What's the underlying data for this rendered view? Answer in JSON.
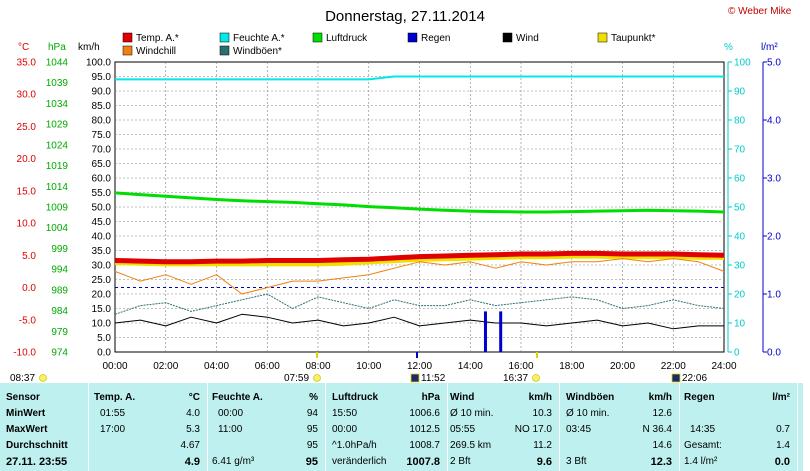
{
  "header": {
    "title": "Donnerstag, 27.11.2014",
    "copyright": "© Weber Mike"
  },
  "legend": [
    {
      "name": "Temp. A.*",
      "color": "#e00000"
    },
    {
      "name": "Feuchte A.*",
      "color": "#00e8e8"
    },
    {
      "name": "Luftdruck",
      "color": "#00dd00"
    },
    {
      "name": "Regen",
      "color": "#0000cc"
    },
    {
      "name": "Wind",
      "color": "#000000"
    },
    {
      "name": "Taupunkt*",
      "color": "#f0e000"
    },
    {
      "name": "Windchill",
      "color": "#f08010"
    },
    {
      "name": "Windböen*",
      "color": "#2a7070"
    }
  ],
  "axes": {
    "temp_unit": "°C",
    "hpa_unit": "hPa",
    "kmh_unit": "km/h",
    "pct_unit": "%",
    "rain_unit": "l/m²",
    "temp_ticks": [
      "35.0",
      "30.0",
      "25.0",
      "20.0",
      "15.0",
      "10.0",
      "5.0",
      "0.0",
      "-5.0",
      "-10.0"
    ],
    "hpa_ticks": [
      "1044",
      "1039",
      "1034",
      "1029",
      "1024",
      "1019",
      "1014",
      "1009",
      "1004",
      "999",
      "994",
      "989",
      "984",
      "979",
      "974"
    ],
    "kmh_ticks": [
      "100.0",
      "95.0",
      "90.0",
      "85.0",
      "80.0",
      "75.0",
      "70.0",
      "65.0",
      "60.0",
      "55.0",
      "50.0",
      "45.0",
      "40.0",
      "35.0",
      "30.0",
      "25.0",
      "20.0",
      "15.0",
      "10.0",
      "5.0",
      "0.0"
    ],
    "pct_ticks": [
      "100",
      "90",
      "80",
      "70",
      "60",
      "50",
      "40",
      "30",
      "20",
      "10",
      "0"
    ],
    "rain_ticks": [
      "5.0",
      "4.0",
      "3.0",
      "2.0",
      "1.0",
      "0.0"
    ],
    "time_ticks": [
      "00:00",
      "02:00",
      "04:00",
      "06:00",
      "08:00",
      "10:00",
      "12:00",
      "14:00",
      "16:00",
      "18:00",
      "20:00",
      "22:00",
      "24:00"
    ]
  },
  "events": {
    "sunrise": "08:37",
    "sunrise_marker": "07:59",
    "noon": "11:52",
    "sunset": "16:37",
    "moon": "22:06"
  },
  "chart_data": {
    "type": "line",
    "title": "Donnerstag, 27.11.2014",
    "x_range": [
      "00:00",
      "24:00"
    ],
    "ylim_temp": [
      -10,
      35
    ],
    "ylim_hpa": [
      974,
      1044
    ],
    "ylim_kmh": [
      0,
      100
    ],
    "ylim_pct": [
      0,
      100
    ],
    "ylim_rain": [
      0,
      5
    ],
    "grid": true,
    "x_hours": [
      0,
      1,
      2,
      3,
      4,
      5,
      6,
      7,
      8,
      9,
      10,
      11,
      12,
      13,
      14,
      15,
      16,
      17,
      18,
      19,
      20,
      21,
      22,
      23,
      24
    ],
    "series": [
      {
        "name": "Temp. A.*",
        "axis": "temp",
        "color": "#e00000",
        "values": [
          4.2,
          4.1,
          4.0,
          4.0,
          4.1,
          4.1,
          4.2,
          4.2,
          4.2,
          4.3,
          4.4,
          4.6,
          4.8,
          4.9,
          5.0,
          5.1,
          5.2,
          5.2,
          5.3,
          5.3,
          5.2,
          5.2,
          5.2,
          5.1,
          5.0
        ]
      },
      {
        "name": "Taupunkt*",
        "axis": "temp",
        "color": "#f0e000",
        "values": [
          3.8,
          3.7,
          3.6,
          3.6,
          3.6,
          3.6,
          3.6,
          3.6,
          3.6,
          3.7,
          3.9,
          4.1,
          4.3,
          4.4,
          4.5,
          4.6,
          4.7,
          4.7,
          4.8,
          4.8,
          4.7,
          4.7,
          4.7,
          4.6,
          4.6
        ]
      },
      {
        "name": "Feuchte A.*",
        "axis": "pct",
        "color": "#00e8e8",
        "values": [
          94,
          94,
          94,
          94,
          94,
          94,
          94,
          94,
          94,
          94,
          94,
          95,
          95,
          95,
          95,
          95,
          95,
          95,
          95,
          95,
          95,
          95,
          95,
          95,
          95
        ]
      },
      {
        "name": "Luftdruck",
        "axis": "hpa",
        "color": "#00dd00",
        "values": [
          1012.4,
          1012.0,
          1011.6,
          1011.2,
          1010.8,
          1010.5,
          1010.3,
          1010.1,
          1009.8,
          1009.5,
          1009.1,
          1008.8,
          1008.5,
          1008.2,
          1008.0,
          1007.9,
          1007.8,
          1007.8,
          1007.9,
          1008.0,
          1008.1,
          1008.2,
          1008.1,
          1008.0,
          1007.8
        ]
      },
      {
        "name": "Windchill",
        "axis": "temp",
        "color": "#f08010",
        "values": [
          2.5,
          1.0,
          2.0,
          0.5,
          2.0,
          -1.0,
          0.0,
          1.0,
          1.0,
          1.5,
          2.0,
          3.0,
          4.0,
          3.5,
          4.0,
          3.0,
          4.0,
          3.5,
          4.0,
          4.0,
          4.5,
          4.0,
          4.5,
          4.0,
          2.5
        ]
      },
      {
        "name": "Windböen*",
        "axis": "kmh",
        "color": "#2a7070",
        "values": [
          13,
          16,
          17,
          14,
          16,
          18,
          20,
          15,
          19,
          17,
          15,
          18,
          16,
          16,
          18,
          16,
          17,
          18,
          19,
          18,
          15,
          16,
          18,
          16,
          15
        ]
      },
      {
        "name": "Wind",
        "axis": "kmh",
        "color": "#000000",
        "values": [
          10,
          11,
          9,
          12,
          10,
          13,
          12,
          10,
          11,
          9,
          10,
          12,
          9,
          10,
          11,
          10,
          10,
          9,
          10,
          11,
          9,
          10,
          8,
          9,
          9
        ]
      },
      {
        "name": "Regen",
        "axis": "rain",
        "color": "#0000cc",
        "type": "bar",
        "points": [
          {
            "x": 14.6,
            "y": 0.7
          },
          {
            "x": 15.2,
            "y": 0.7
          }
        ]
      }
    ]
  },
  "table": {
    "sensor": {
      "head": "Sensor",
      "rows": [
        "MinWert",
        "MaxWert",
        "Durchschnitt"
      ],
      "last": "27.11. 23:55"
    },
    "temp": {
      "head": "Temp. A.",
      "unit": "°C",
      "t": [
        "01:55",
        "17:00",
        "",
        ""
      ],
      "v": [
        "4.0",
        "5.3",
        "4.67",
        "4.9"
      ]
    },
    "feuchte": {
      "head": "Feuchte A.",
      "unit": "%",
      "t": [
        "00:00",
        "11:00",
        "",
        "6.41 g/m³"
      ],
      "v": [
        "94",
        "95",
        "95",
        "95"
      ]
    },
    "luft": {
      "head": "Luftdruck",
      "unit": "hPa",
      "t": [
        "15:50",
        "00:00",
        "^1.0hPa/h",
        "veränderlich"
      ],
      "v": [
        "1006.6",
        "1012.5",
        "1008.7",
        "1007.8"
      ]
    },
    "wind": {
      "head": "Wind",
      "unit": "km/h",
      "t": [
        "Ø 10 min.",
        "05:55",
        "269.5 km",
        "2 Bft"
      ],
      "v": [
        "10.3",
        "NO 17.0",
        "11.2",
        "9.6"
      ]
    },
    "boen": {
      "head": "Windböen",
      "unit": "km/h",
      "t": [
        "Ø 10 min.",
        "03:45",
        "",
        "3 Bft"
      ],
      "v": [
        "12.6",
        "N 36.4",
        "14.6",
        "12.3"
      ]
    },
    "regen": {
      "head": "Regen",
      "unit": "l/m²",
      "t": [
        "",
        "14:35",
        "Gesamt:",
        "1.4 l/m²"
      ],
      "v": [
        "",
        "0.7",
        "1.4",
        "0.0"
      ]
    }
  }
}
